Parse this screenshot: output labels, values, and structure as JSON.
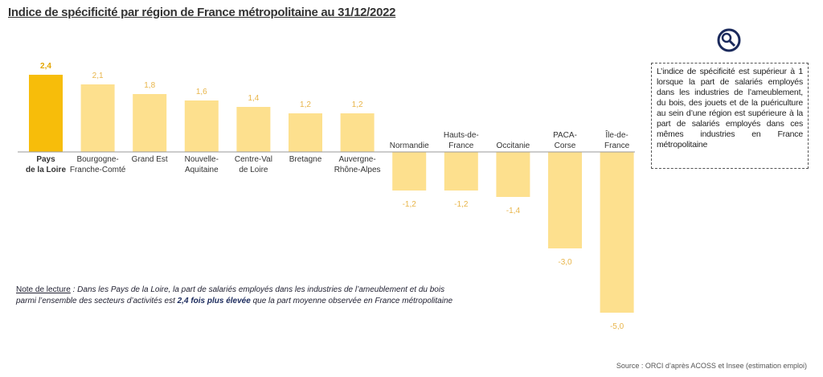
{
  "chart_data": {
    "type": "bar",
    "title": "Indice de spécificité par région de France métropolitaine au 31/12/2022",
    "categories": [
      "Pays\nde la Loire",
      "Bourgogne-\nFranche-Comté",
      "Grand Est",
      "Nouvelle-\nAquitaine",
      "Centre-Val\nde Loire",
      "Bretagne",
      "Auvergne-\nRhône-Alpes",
      "Normandie",
      "Hauts-de-\nFrance",
      "Occitanie",
      "PACA-\nCorse",
      "Île-de-\nFrance"
    ],
    "values": [
      2.4,
      2.1,
      1.8,
      1.6,
      1.4,
      1.2,
      1.2,
      -1.2,
      -1.2,
      -1.4,
      -3.0,
      -5.0
    ],
    "value_labels": [
      "2,4",
      "2,1",
      "1,8",
      "1,6",
      "1,4",
      "1,2",
      "1,2",
      "-1,2",
      "-1,2",
      "-1,4",
      "-3,0",
      "-5,0"
    ],
    "colors": [
      "#f7bd0a",
      "#fde08e",
      "#fde08e",
      "#fde08e",
      "#fde08e",
      "#fde08e",
      "#fde08e",
      "#fde08e",
      "#fde08e",
      "#fde08e",
      "#fde08e",
      "#fde08e"
    ],
    "label_colors": [
      "#e3a600",
      "#e8b54a",
      "#e8b54a",
      "#e8b54a",
      "#e8b54a",
      "#e8b54a",
      "#e8b54a",
      "#e8b54a",
      "#e8b54a",
      "#e8b54a",
      "#e8b54a",
      "#e8b54a"
    ],
    "info_box": "L’indice de spécificité est supérieur à 1 lorsque la part de salariés employés dans les industries de l’ameublement, du bois, des jouets et de la puériculture au sein d’une région est supérieure à la part de salariés employés dans ces mêmes industries en France métropolitaine",
    "note": {
      "label": "Note de lecture",
      "text_before": " : Dans les Pays de la Loire, la part de salariés employés dans les industries de l’ameublement et du bois parmi l’ensemble des secteurs d’activités est ",
      "emphasis": "2,4 fois plus élevée",
      "text_after": " que la part moyenne observée en France métropolitaine"
    },
    "source": "Source : ORCI d’après ACOSS et Insee (estimation emploi)"
  }
}
